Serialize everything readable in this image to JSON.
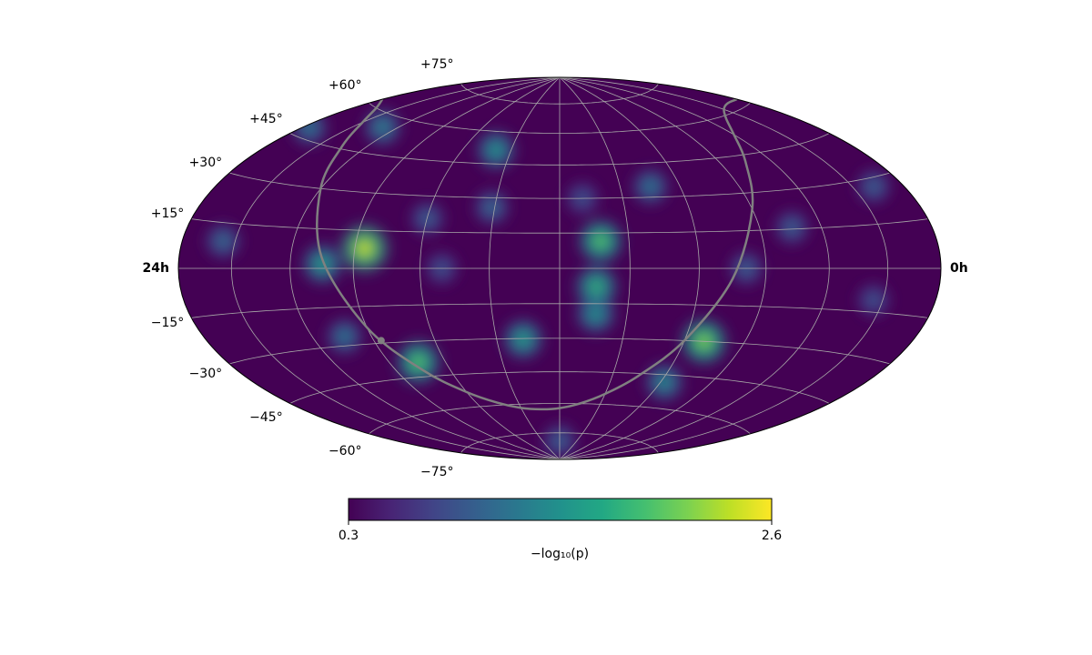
{
  "chart_data": {
    "type": "skymap",
    "projection": "hammer",
    "xlim": [
      24,
      0
    ],
    "ylim": [
      -90,
      90
    ],
    "xticks": [
      {
        "value": 24,
        "label": "24h"
      },
      {
        "value": 0,
        "label": "0h"
      }
    ],
    "xgrid": [
      2,
      4,
      6,
      8,
      10,
      12,
      14,
      16,
      18,
      20,
      22
    ],
    "yticks": [
      {
        "value": 75,
        "label": "+75°"
      },
      {
        "value": 60,
        "label": "+60°"
      },
      {
        "value": 45,
        "label": "+45°"
      },
      {
        "value": 30,
        "label": "+30°"
      },
      {
        "value": 15,
        "label": "+15°"
      },
      {
        "value": -15,
        "label": "−15°"
      },
      {
        "value": -30,
        "label": "−30°"
      },
      {
        "value": -45,
        "label": "−45°"
      },
      {
        "value": -60,
        "label": "−60°"
      },
      {
        "value": -75,
        "label": "−75°"
      }
    ],
    "ygrid": [
      -75,
      -60,
      -45,
      -30,
      -15,
      0,
      15,
      30,
      45,
      60,
      75
    ],
    "grid": true,
    "grid_color": "#a8a8a8",
    "points": {
      "ra": [
        11.28,
        15.37,
        2.33,
        15.99,
        12.0,
        6.6,
        4.97,
        1.19,
        14.09,
        22.44,
        8.99,
        23.7,
        18.9,
        20.7,
        7.85,
        10.93,
        14.62,
        13.16,
        18.96,
        10.95,
        16.96,
        10.82,
        7.35,
        17.7
      ],
      "dec": [
        30.0,
        0.0,
        -10.9,
        20.6,
        -79.4,
        0.0,
        15.6,
        27.2,
        25.9,
        9.0,
        34.6,
        48.3,
        -26.4,
        55.3,
        -48.3,
        -19.4,
        51.3,
        -30.3,
        1.7,
        -7.7,
        -38.7,
        11.5,
        -30.0,
        7.9
      ],
      "values": [
        0.9,
        0.9,
        0.9,
        1.0,
        1.0,
        1.0,
        1.0,
        1.0,
        1.1,
        1.1,
        1.2,
        1.2,
        1.2,
        1.3,
        1.4,
        1.5,
        1.5,
        1.6,
        1.6,
        1.8,
        2.0,
        2.0,
        2.2,
        2.5
      ]
    },
    "colorbar": {
      "label": "−log₁₀(p)",
      "lim": [
        0.3,
        2.6
      ],
      "ticks": [
        0.3,
        2.6
      ],
      "colormap": "viridis"
    },
    "curve": {
      "color": "#808080",
      "ra": [
        0,
        1,
        2,
        3,
        4,
        5,
        6,
        7,
        8,
        9,
        10,
        11,
        12,
        13,
        14,
        15,
        16,
        17,
        18,
        19,
        20,
        21,
        22,
        23,
        24
      ],
      "dec": [
        62.3,
        62.8,
        61.8,
        58.8,
        53.0,
        42.3,
        23.5,
        -4.2,
        -29.9,
        -46.0,
        -55.0,
        -59.9,
        -62.3,
        -62.8,
        -61.8,
        -58.8,
        -53.0,
        -42.3,
        -23.5,
        4.2,
        29.9,
        46.0,
        55.0,
        59.9,
        62.3
      ]
    },
    "marker": {
      "ra": 17.76,
      "dec": -28.94,
      "color": "#808080"
    }
  }
}
